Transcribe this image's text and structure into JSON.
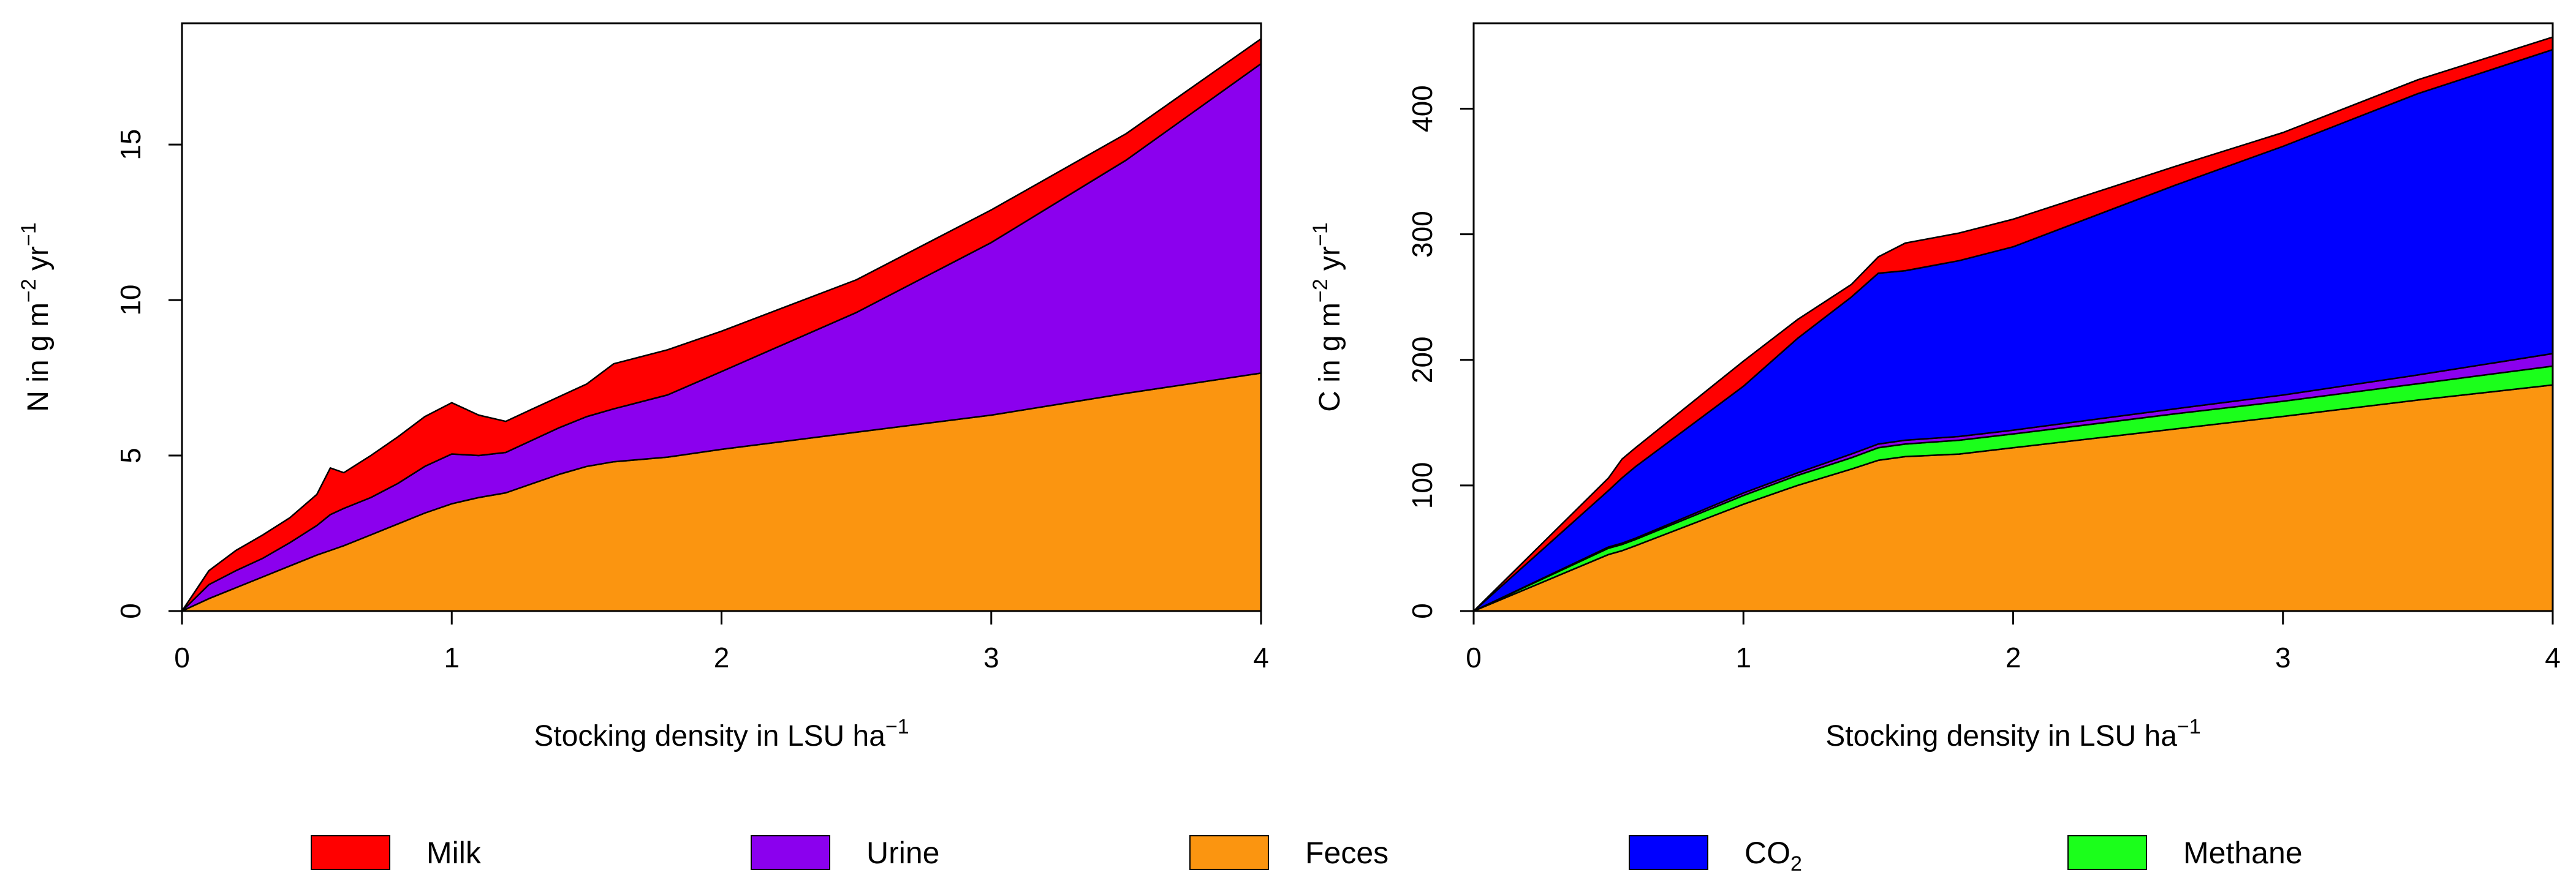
{
  "colors": {
    "milk": "#ff0000",
    "urine": "#8b00ee",
    "feces": "#fb9510",
    "co2": "#0000ff",
    "methane": "#1bff1b"
  },
  "chart_data": [
    {
      "type": "area",
      "stacked": true,
      "xlabel_text": "Stocking density in LSU ha",
      "xlabel_sup": "−1",
      "ylabel_parts": [
        "N in g m",
        "−2",
        " yr",
        "−1"
      ],
      "xlim": [
        0,
        4
      ],
      "ylim": [
        0,
        18.9
      ],
      "xticks": [
        0,
        1,
        2,
        3,
        4
      ],
      "yticks": [
        0,
        5,
        10,
        15
      ],
      "grid": false,
      "x": [
        0,
        0.1,
        0.2,
        0.3,
        0.4,
        0.5,
        0.55,
        0.6,
        0.7,
        0.8,
        0.9,
        1.0,
        1.1,
        1.2,
        1.3,
        1.4,
        1.5,
        1.6,
        1.8,
        2.0,
        2.5,
        3.0,
        3.5,
        4.0
      ],
      "series": [
        {
          "name": "Feces",
          "color_key": "feces",
          "values": [
            0,
            0.4,
            0.75,
            1.1,
            1.45,
            1.8,
            1.95,
            2.1,
            2.45,
            2.8,
            3.15,
            3.45,
            3.65,
            3.8,
            4.1,
            4.4,
            4.65,
            4.8,
            4.95,
            5.2,
            5.75,
            6.3,
            7.0,
            7.65
          ]
        },
        {
          "name": "Urine",
          "color_key": "urine",
          "values": [
            0,
            0.45,
            0.55,
            0.6,
            0.75,
            0.95,
            1.15,
            1.2,
            1.2,
            1.3,
            1.5,
            1.6,
            1.35,
            1.3,
            1.4,
            1.5,
            1.6,
            1.7,
            2.0,
            2.5,
            3.85,
            5.55,
            7.5,
            9.95
          ]
        },
        {
          "name": "Milk",
          "color_key": "milk",
          "values": [
            0,
            0.45,
            0.65,
            0.75,
            0.8,
            1.0,
            1.5,
            1.15,
            1.35,
            1.5,
            1.6,
            1.65,
            1.3,
            1.0,
            1.0,
            1.0,
            1.05,
            1.45,
            1.45,
            1.3,
            1.05,
            1.05,
            0.85,
            0.8
          ]
        }
      ]
    },
    {
      "type": "area",
      "stacked": true,
      "xlabel_text": "Stocking density in LSU ha",
      "xlabel_sup": "−1",
      "ylabel_parts": [
        "C in g m",
        "−2",
        " yr",
        "−1"
      ],
      "xlim": [
        0,
        4
      ],
      "ylim": [
        0,
        468
      ],
      "xticks": [
        0,
        1,
        2,
        3,
        4
      ],
      "yticks": [
        0,
        100,
        200,
        300,
        400
      ],
      "grid": false,
      "x": [
        0,
        0.5,
        0.55,
        0.6,
        1.0,
        1.2,
        1.4,
        1.5,
        1.6,
        1.8,
        2.0,
        2.6,
        3.0,
        3.5,
        4.0
      ],
      "series": [
        {
          "name": "Feces",
          "color_key": "feces",
          "values": [
            0,
            45,
            48,
            52,
            85,
            100,
            113,
            120,
            123,
            125,
            130,
            145,
            155,
            168,
            180
          ]
        },
        {
          "name": "Methane",
          "color_key": "methane",
          "values": [
            0,
            5,
            5,
            5,
            7,
            8,
            9,
            10,
            10,
            11,
            11,
            12,
            12,
            13,
            15
          ]
        },
        {
          "name": "Urine",
          "color_key": "urine",
          "values": [
            0,
            1,
            1,
            1,
            2,
            2,
            3,
            3,
            3,
            3,
            3,
            4,
            5,
            7,
            10
          ]
        },
        {
          "name": "CO2",
          "color_key": "co2",
          "values": [
            0,
            45,
            52,
            57,
            85,
            107,
            125,
            136,
            135,
            140,
            146,
            178,
            198,
            224,
            242
          ]
        },
        {
          "name": "Milk",
          "color_key": "milk",
          "values": [
            0,
            10,
            15,
            15,
            20,
            15,
            10,
            13,
            22,
            22,
            22,
            15,
            11,
            11,
            10
          ]
        }
      ]
    }
  ],
  "legend": [
    {
      "label": "Milk",
      "color_key": "milk"
    },
    {
      "label": "Urine",
      "color_key": "urine"
    },
    {
      "label": "Feces",
      "color_key": "feces"
    },
    {
      "label": "CO",
      "sub": "2",
      "color_key": "co2"
    },
    {
      "label": "Methane",
      "color_key": "methane"
    }
  ]
}
